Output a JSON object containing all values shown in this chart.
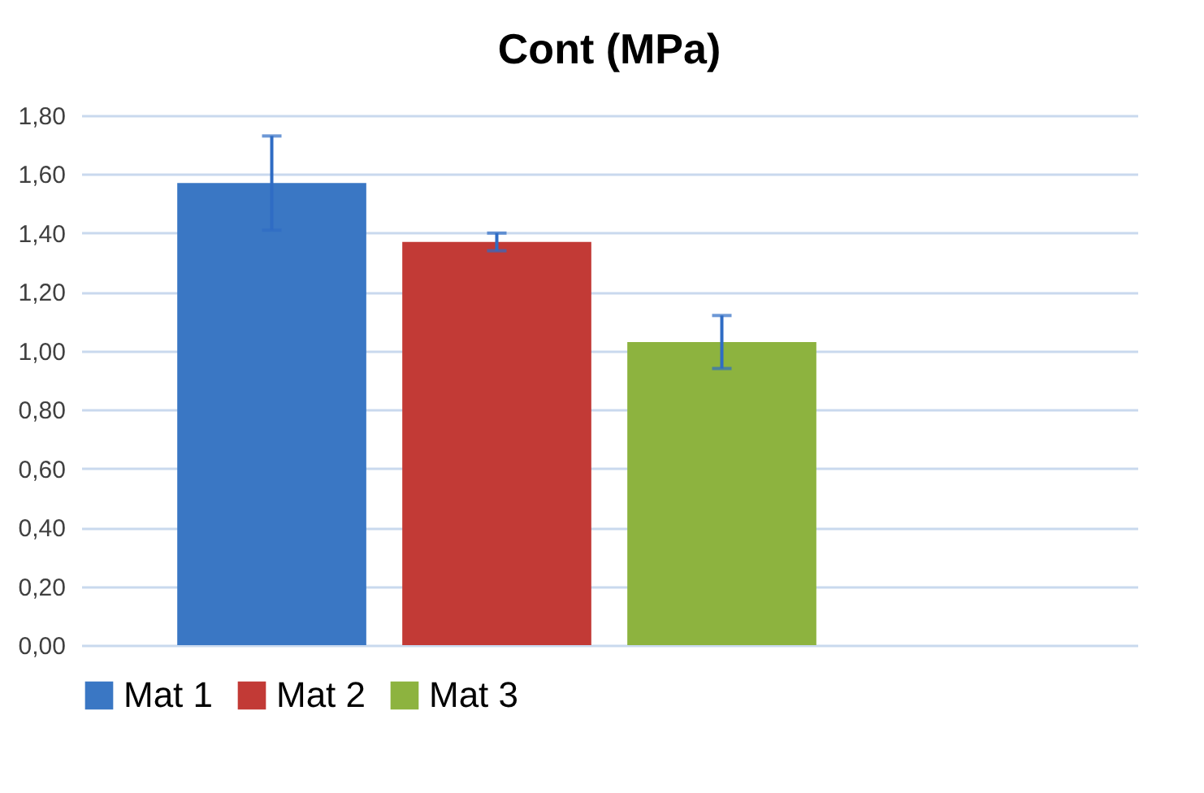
{
  "chart_data": {
    "type": "bar",
    "title": "Cont (MPa)",
    "categories": [
      null
    ],
    "series": [
      {
        "name": "Mat 1",
        "color": "#3a77c4",
        "values": [
          1.57
        ],
        "errors": [
          0.16
        ]
      },
      {
        "name": "Mat 2",
        "color": "#c23a36",
        "values": [
          1.37
        ],
        "errors": [
          0.03
        ]
      },
      {
        "name": "Mat 3",
        "color": "#8db33f",
        "values": [
          1.03
        ],
        "errors": [
          0.09
        ]
      }
    ],
    "ylim": [
      0,
      1.8
    ],
    "yticks": [
      {
        "value": 0,
        "label": "0,00"
      },
      {
        "value": 0.2,
        "label": "0,20"
      },
      {
        "value": 0.4,
        "label": "0,40"
      },
      {
        "value": 0.6,
        "label": "0,60"
      },
      {
        "value": 0.8,
        "label": "0,80"
      },
      {
        "value": 1.0,
        "label": "1,00"
      },
      {
        "value": 1.2,
        "label": "1,20"
      },
      {
        "value": 1.4,
        "label": "1,40"
      },
      {
        "value": 1.6,
        "label": "1,60"
      },
      {
        "value": 1.8,
        "label": "1,80"
      }
    ],
    "grid": "y",
    "legend": "bottom"
  }
}
